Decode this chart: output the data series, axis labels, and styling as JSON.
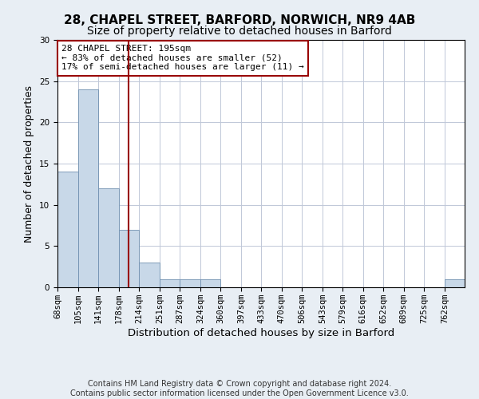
{
  "title_line1": "28, CHAPEL STREET, BARFORD, NORWICH, NR9 4AB",
  "title_line2": "Size of property relative to detached houses in Barford",
  "xlabel": "Distribution of detached houses by size in Barford",
  "ylabel": "Number of detached properties",
  "footer_line1": "Contains HM Land Registry data © Crown copyright and database right 2024.",
  "footer_line2": "Contains public sector information licensed under the Open Government Licence v3.0.",
  "annotation_line1": "28 CHAPEL STREET: 195sqm",
  "annotation_line2": "← 83% of detached houses are smaller (52)",
  "annotation_line3": "17% of semi-detached houses are larger (11) →",
  "bar_edges": [
    68,
    105,
    141,
    178,
    214,
    251,
    287,
    324,
    360,
    397,
    433,
    470,
    506,
    543,
    579,
    616,
    652,
    689,
    725,
    762,
    798
  ],
  "bar_heights": [
    14,
    24,
    12,
    7,
    3,
    1,
    1,
    1,
    0,
    0,
    0,
    0,
    0,
    0,
    0,
    0,
    0,
    0,
    0,
    1
  ],
  "bar_color": "#c8d8e8",
  "bar_edge_color": "#7090b0",
  "ref_line_x": 195,
  "ref_line_color": "#990000",
  "ylim": [
    0,
    30
  ],
  "yticks": [
    0,
    5,
    10,
    15,
    20,
    25,
    30
  ],
  "bg_color": "#e8eef4",
  "plot_bg_color": "#ffffff",
  "grid_color": "#c0c8d8",
  "annotation_box_color": "#ffffff",
  "annotation_box_edge_color": "#990000",
  "title1_fontsize": 11,
  "title2_fontsize": 10,
  "xlabel_fontsize": 9.5,
  "ylabel_fontsize": 9,
  "tick_fontsize": 7.5,
  "annotation_fontsize": 8,
  "footer_fontsize": 7
}
